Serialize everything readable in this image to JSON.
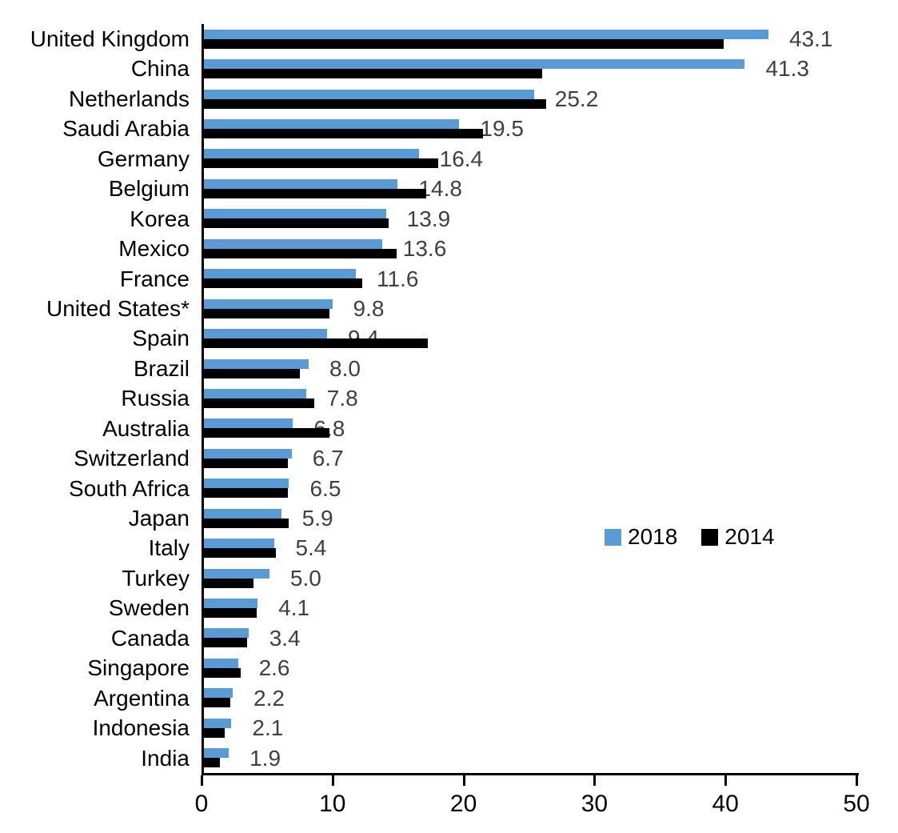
{
  "chart_data": {
    "type": "bar",
    "orientation": "horizontal",
    "title": "",
    "xlabel": "",
    "ylabel": "",
    "xlim": [
      0,
      50
    ],
    "x_ticks": [
      0,
      10,
      20,
      30,
      40,
      50
    ],
    "grid": false,
    "categories": [
      "United Kingdom",
      "China",
      "Netherlands",
      "Saudi Arabia",
      "Germany",
      "Belgium",
      "Korea",
      "Mexico",
      "France",
      "United States*",
      "Spain",
      "Brazil",
      "Russia",
      "Australia",
      "Switzerland",
      "South Africa",
      "Japan",
      "Italy",
      "Turkey",
      "Sweden",
      "Canada",
      "Singapore",
      "Argentina",
      "Indonesia",
      "India"
    ],
    "series": [
      {
        "name": "2018",
        "color": "#5B9BD5",
        "values": [
          43.1,
          41.3,
          25.2,
          19.5,
          16.4,
          14.8,
          13.9,
          13.6,
          11.6,
          9.8,
          9.4,
          8.0,
          7.8,
          6.8,
          6.7,
          6.5,
          5.9,
          5.4,
          5.0,
          4.1,
          3.4,
          2.6,
          2.2,
          2.1,
          1.9
        ],
        "data_labels": [
          "43.1",
          "41.3",
          "25.2",
          "19.5",
          "16.4",
          "14.8",
          "13.9",
          "13.6",
          "11.6",
          "9.8",
          "9.4",
          "8.0",
          "7.8",
          "6.8",
          "6.7",
          "6.5",
          "5.9",
          "5.4",
          "5.0",
          "4.1",
          "3.4",
          "2.6",
          "2.2",
          "2.1",
          "1.9"
        ]
      },
      {
        "name": "2014",
        "color": "#000000",
        "values": [
          39.7,
          25.8,
          26.1,
          21.3,
          17.9,
          17.0,
          14.1,
          14.7,
          12.1,
          9.6,
          17.1,
          7.3,
          8.4,
          9.6,
          6.4,
          6.4,
          6.5,
          5.5,
          3.8,
          4.0,
          3.3,
          2.8,
          2.0,
          1.6,
          1.2
        ]
      }
    ],
    "legend": {
      "position": "middle-right",
      "items": [
        {
          "label": "2018",
          "color": "#5B9BD5"
        },
        {
          "label": "2014",
          "color": "#000000"
        }
      ]
    },
    "label_color": "#404040",
    "axis_color": "#000000"
  }
}
